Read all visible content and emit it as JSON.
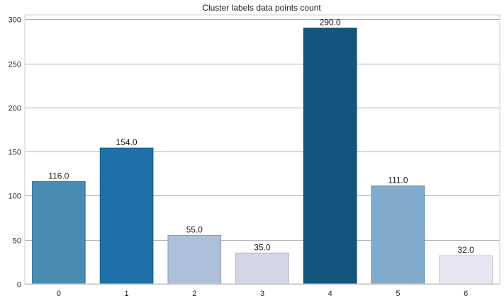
{
  "chart_data": {
    "type": "bar",
    "title": "Cluster labels data points count",
    "xlabel": "",
    "ylabel": "",
    "categories": [
      "0",
      "1",
      "2",
      "3",
      "4",
      "5",
      "6"
    ],
    "values": [
      116,
      154,
      55,
      35,
      290,
      111,
      32
    ],
    "data_labels": [
      "116.0",
      "154.0",
      "55.0",
      "35.0",
      "290.0",
      "111.0",
      "32.0"
    ],
    "colors": [
      "#4a8db3",
      "#1f70a8",
      "#adbfd9",
      "#d4d6e7",
      "#14557e",
      "#80abcc",
      "#e8e6f2"
    ],
    "edge_colors": [
      "#3a7193",
      "#185a88",
      "#8c9db5",
      "#aeb0c3",
      "#0f4466",
      "#6389a6",
      "#c2c0cf"
    ],
    "ylim": [
      0,
      305
    ],
    "yticks": [
      0,
      50,
      100,
      150,
      200,
      250,
      300
    ],
    "grid": "horizontal",
    "legend": "none"
  }
}
